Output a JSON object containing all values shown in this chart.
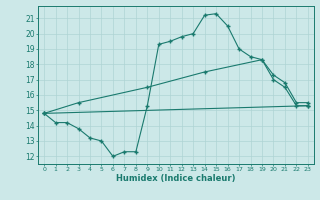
{
  "line1_x": [
    0,
    1,
    2,
    3,
    4,
    5,
    6,
    7,
    8,
    9,
    10,
    11,
    12,
    13,
    14,
    15,
    16,
    17,
    18,
    19,
    20,
    21,
    22,
    23
  ],
  "line1_y": [
    14.8,
    14.2,
    14.2,
    13.8,
    13.2,
    13.0,
    12.0,
    12.3,
    12.3,
    15.3,
    19.3,
    19.5,
    19.8,
    20.0,
    21.2,
    21.3,
    20.5,
    19.0,
    18.5,
    18.3,
    17.0,
    16.5,
    15.3,
    15.3
  ],
  "line2_x": [
    0,
    3,
    9,
    14,
    19,
    20,
    21,
    22,
    23
  ],
  "line2_y": [
    14.8,
    15.5,
    16.5,
    17.5,
    18.3,
    17.3,
    16.8,
    15.5,
    15.5
  ],
  "line3_x": [
    0,
    23
  ],
  "line3_y": [
    14.8,
    15.3
  ],
  "line_color": "#1a7a6e",
  "bg_color": "#cce8e8",
  "grid_color": "#afd4d4",
  "xlabel": "Humidex (Indice chaleur)",
  "ylabel_ticks": [
    12,
    13,
    14,
    15,
    16,
    17,
    18,
    19,
    20,
    21
  ],
  "xlim": [
    -0.5,
    23.5
  ],
  "ylim": [
    11.5,
    21.8
  ],
  "xtick_labels": [
    "0",
    "1",
    "2",
    "3",
    "4",
    "5",
    "6",
    "7",
    "8",
    "9",
    "10",
    "11",
    "12",
    "13",
    "14",
    "15",
    "16",
    "17",
    "18",
    "19",
    "20",
    "21",
    "22",
    "23"
  ]
}
